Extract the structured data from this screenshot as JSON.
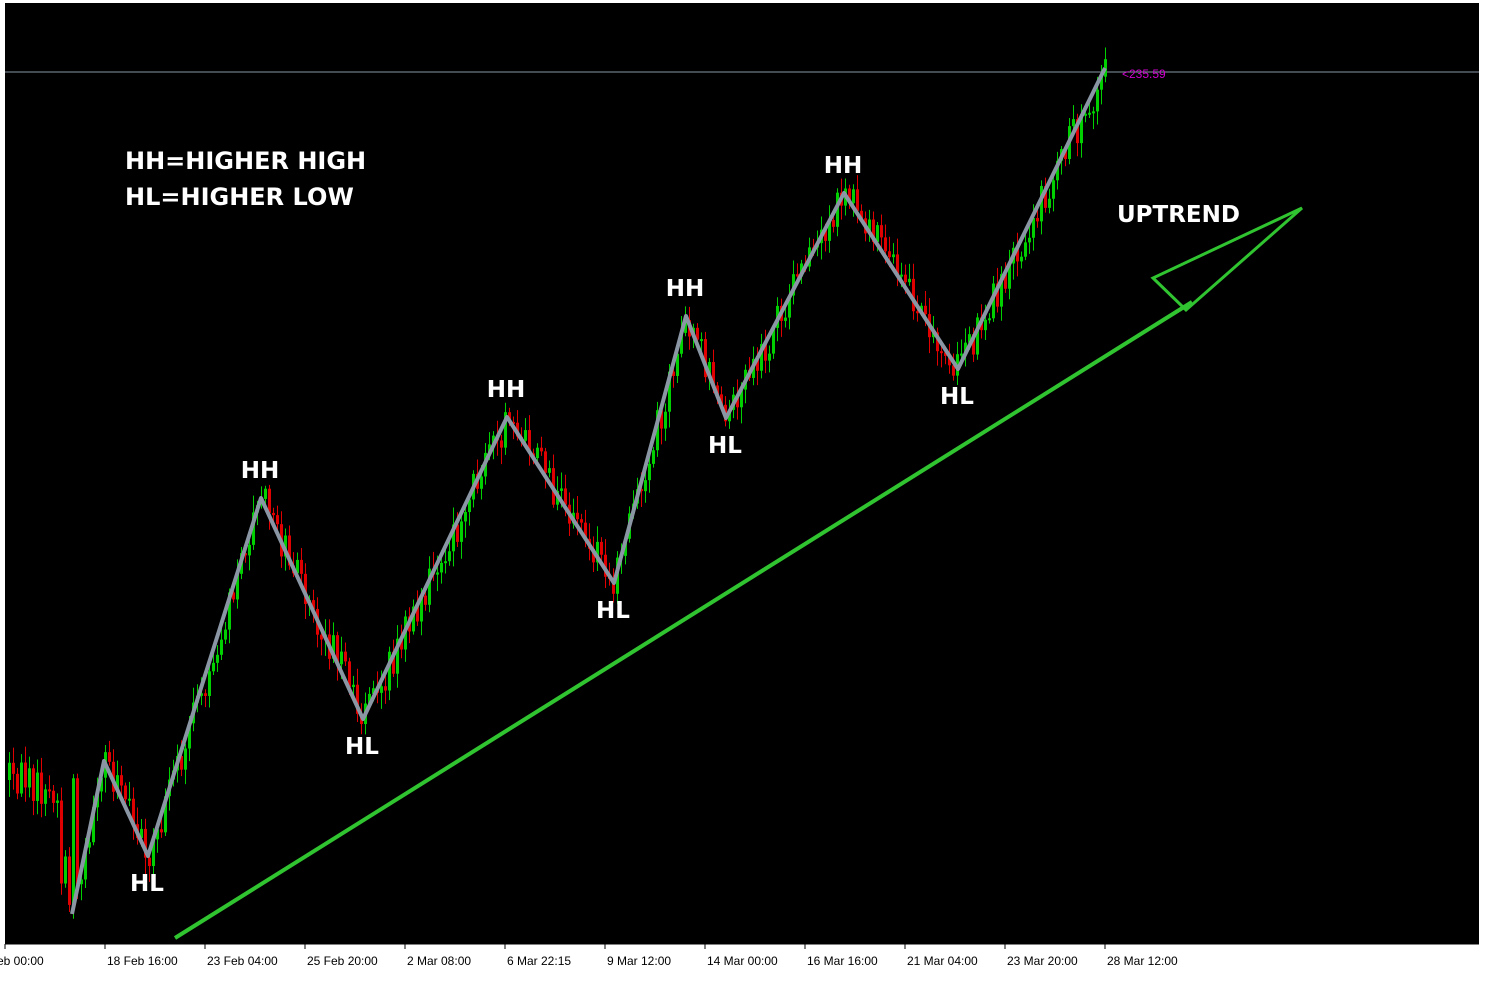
{
  "chart_data": {
    "type": "candlestick",
    "background": "#000000",
    "colors": {
      "bull": "#00d000",
      "bear": "#e00000",
      "zigzag": "#8a96a4",
      "trend": "#31c431",
      "level": "#8a96a4",
      "label": "#ffffff"
    },
    "x_ticks": [
      "eb 00:00",
      "18 Feb 16:00",
      "23 Feb 04:00",
      "25 Feb 20:00",
      "2 Mar 08:00",
      "6 Mar 22:15",
      "9 Mar 12:00",
      "14 Mar 00:00",
      "16 Mar 16:00",
      "21 Mar 04:00",
      "23 Mar 20:00",
      "28 Mar 12:00"
    ],
    "price_tag": "<235.59",
    "legend_lines": [
      "HH=HIGHER HIGH",
      "HL=HIGHER LOW"
    ],
    "trend_label": "UPTREND",
    "swings": [
      {
        "label": "",
        "type": "low"
      },
      {
        "label": "",
        "type": "high"
      },
      {
        "label": "HL",
        "type": "low"
      },
      {
        "label": "HH",
        "type": "high"
      },
      {
        "label": "HL",
        "type": "low"
      },
      {
        "label": "HH",
        "type": "high"
      },
      {
        "label": "HL",
        "type": "low"
      },
      {
        "label": "HH",
        "type": "high"
      },
      {
        "label": "HL",
        "type": "low"
      },
      {
        "label": "HH",
        "type": "high"
      },
      {
        "label": "HL",
        "type": "low"
      },
      {
        "label": "",
        "type": "high"
      }
    ]
  }
}
